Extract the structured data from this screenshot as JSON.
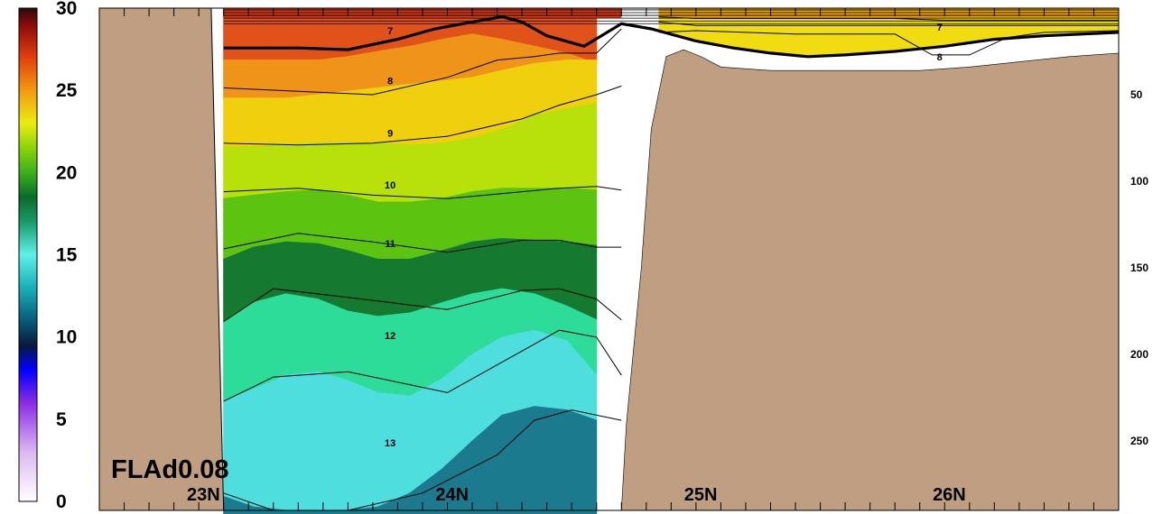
{
  "chart_data": {
    "type": "heatmap",
    "model_label": "FLAd0.08",
    "colorbar": {
      "range": [
        0,
        30
      ],
      "tick_labels": [
        "0",
        "5",
        "10",
        "15",
        "20",
        "25",
        "30"
      ],
      "tick_values": [
        0,
        5,
        10,
        15,
        20,
        25,
        30
      ],
      "colors": [
        [
          0,
          "#ffffff"
        ],
        [
          3,
          "#dcb8f0"
        ],
        [
          6,
          "#8a2be2"
        ],
        [
          8,
          "#0000ff"
        ],
        [
          9.5,
          "#081a3a"
        ],
        [
          11,
          "#0a5a7a"
        ],
        [
          13,
          "#1ab0b8"
        ],
        [
          15,
          "#5ff0e8"
        ],
        [
          17,
          "#1a9a6a"
        ],
        [
          18.5,
          "#0a6a2a"
        ],
        [
          20,
          "#3cb01c"
        ],
        [
          21.5,
          "#8ad40a"
        ],
        [
          23,
          "#ecec10"
        ],
        [
          25,
          "#f29a10"
        ],
        [
          27,
          "#e0400c"
        ],
        [
          29,
          "#8a0a0a"
        ],
        [
          30,
          "#2a0a0a"
        ]
      ]
    },
    "depth_axis": {
      "tick_labels": [
        "50",
        "100",
        "150",
        "200",
        "250"
      ],
      "tick_values": [
        50,
        100,
        150,
        200,
        250
      ],
      "range": [
        0,
        290
      ]
    },
    "latitude_axis": {
      "tick_labels": [
        "23N",
        "24N",
        "25N",
        "26N"
      ],
      "tick_values": [
        23,
        24,
        25,
        26
      ],
      "range": [
        22.5,
        26.6
      ]
    },
    "contour_labels": [
      {
        "text": "7",
        "lat": 23.67,
        "depth": 13
      },
      {
        "text": "8",
        "lat": 23.67,
        "depth": 42
      },
      {
        "text": "9",
        "lat": 23.67,
        "depth": 72
      },
      {
        "text": "10",
        "lat": 23.67,
        "depth": 102
      },
      {
        "text": "11",
        "lat": 23.67,
        "depth": 136
      },
      {
        "text": "12",
        "lat": 23.67,
        "depth": 189
      },
      {
        "text": "13",
        "lat": 23.67,
        "depth": 251
      },
      {
        "text": "7",
        "lat": 25.88,
        "depth": 11
      },
      {
        "text": "8",
        "lat": 25.88,
        "depth": 28
      }
    ],
    "bands": [
      {
        "value": 26.5,
        "color": "#e0521a",
        "top": [
          2,
          2,
          2,
          2,
          2,
          2,
          2,
          2,
          2,
          2,
          2,
          2,
          2
        ],
        "bottom": [
          30,
          30,
          30,
          30,
          28,
          25,
          22,
          18,
          15,
          18,
          22,
          26,
          32
        ]
      },
      {
        "value": 24.5,
        "color": "#ef9418",
        "top": [
          30,
          30,
          30,
          30,
          28,
          25,
          22,
          18,
          15,
          18,
          22,
          26,
          32
        ],
        "bottom": [
          52,
          52,
          52,
          50,
          48,
          46,
          44,
          42,
          40,
          36,
          32,
          30,
          30
        ]
      },
      {
        "value": 22.8,
        "color": "#f0d00e",
        "top": [
          52,
          52,
          52,
          50,
          48,
          46,
          44,
          42,
          40,
          36,
          32,
          30,
          30
        ],
        "bottom": [
          80,
          80,
          79,
          78,
          78,
          78,
          79,
          78,
          75,
          70,
          62,
          58,
          55
        ]
      },
      {
        "value": 21.3,
        "color": "#b8e00a",
        "top": [
          80,
          80,
          79,
          78,
          78,
          78,
          79,
          78,
          75,
          70,
          62,
          58,
          55
        ],
        "bottom": [
          110,
          108,
          106,
          105,
          108,
          112,
          112,
          110,
          106,
          104,
          104,
          104,
          105
        ]
      },
      {
        "value": 19.7,
        "color": "#5cc410",
        "top": [
          110,
          108,
          106,
          105,
          108,
          112,
          112,
          110,
          106,
          104,
          104,
          104,
          105
        ],
        "bottom": [
          145,
          138,
          135,
          136,
          140,
          145,
          145,
          140,
          135,
          133,
          134,
          135,
          137
        ]
      },
      {
        "value": 18,
        "color": "#157a30",
        "top": [
          145,
          138,
          135,
          136,
          140,
          145,
          145,
          140,
          135,
          133,
          134,
          135,
          137
        ],
        "bottom": [
          181,
          170,
          165,
          168,
          175,
          178,
          176,
          170,
          165,
          162,
          165,
          172,
          180
        ]
      },
      {
        "value": 16,
        "color": "#2edc9a",
        "top": [
          181,
          170,
          165,
          168,
          175,
          178,
          176,
          170,
          165,
          162,
          165,
          172,
          180
        ],
        "bottom": [
          227,
          220,
          212,
          210,
          215,
          222,
          224,
          214,
          200,
          190,
          186,
          192,
          212
        ]
      },
      {
        "value": 14,
        "color": "#4fdede",
        "top": [
          227,
          220,
          212,
          210,
          215,
          222,
          224,
          214,
          200,
          190,
          186,
          192,
          212
        ],
        "bottom": [
          282,
          288,
          290,
          290,
          290,
          288,
          280,
          266,
          250,
          235,
          230,
          232,
          238
        ]
      },
      {
        "value": 11.5,
        "color": "#1b7a8e",
        "top": [
          282,
          288,
          290,
          290,
          290,
          288,
          280,
          266,
          250,
          235,
          230,
          232,
          238
        ],
        "bottom": [
          292,
          292,
          292,
          292,
          292,
          292,
          292,
          292,
          292,
          292,
          292,
          292,
          292
        ]
      }
    ],
    "band_lats": [
      23.0,
      23.12,
      23.25,
      23.38,
      23.5,
      23.62,
      23.75,
      23.88,
      24.0,
      24.12,
      24.25,
      24.38,
      24.5
    ],
    "bold_isotherm": {
      "lat": [
        23.0,
        23.15,
        23.3,
        23.5,
        23.7,
        23.85,
        24.0,
        24.12,
        24.2,
        24.3,
        24.45,
        24.6,
        24.72,
        24.9,
        25.05,
        25.2,
        25.35,
        25.5,
        25.7,
        25.9,
        26.1,
        26.3,
        26.6
      ],
      "depth": [
        23,
        23,
        23,
        24,
        18,
        12,
        8,
        5,
        8,
        16,
        22,
        9,
        12,
        19,
        23,
        26,
        28,
        27,
        25,
        22,
        18,
        16,
        14
      ]
    },
    "contour_lines": [
      {
        "lat": [
          23.0,
          23.3,
          23.6,
          23.9,
          24.1,
          24.25,
          24.35,
          24.5,
          24.6
        ],
        "depth": [
          46,
          48,
          50,
          40,
          30,
          28,
          26,
          26,
          12
        ]
      },
      {
        "lat": [
          23.0,
          23.3,
          23.6,
          23.9,
          24.2,
          24.35,
          24.5,
          24.6
        ],
        "depth": [
          78,
          79,
          78,
          74,
          64,
          56,
          50,
          45
        ]
      },
      {
        "lat": [
          23.0,
          23.3,
          23.6,
          23.9,
          24.2,
          24.35,
          24.5,
          24.6
        ],
        "depth": [
          106,
          104,
          108,
          110,
          106,
          104,
          103,
          105
        ]
      },
      {
        "lat": [
          23.0,
          23.3,
          23.6,
          23.9,
          24.2,
          24.35,
          24.5,
          24.6
        ],
        "depth": [
          139,
          130,
          135,
          141,
          134,
          134,
          138,
          138
        ]
      },
      {
        "lat": [
          23.0,
          23.2,
          23.5,
          23.9,
          24.2,
          24.35,
          24.5,
          24.6
        ],
        "depth": [
          181,
          162,
          167,
          174,
          163,
          162,
          168,
          180
        ]
      },
      {
        "lat": [
          23.0,
          23.2,
          23.5,
          23.9,
          24.2,
          24.35,
          24.5,
          24.6
        ],
        "depth": [
          227,
          213,
          210,
          222,
          198,
          186,
          190,
          212
        ]
      },
      {
        "lat": [
          23.0,
          23.2,
          23.5,
          23.8,
          24.1,
          24.25,
          24.4,
          24.6
        ],
        "depth": [
          280,
          290,
          290,
          280,
          258,
          238,
          232,
          238
        ]
      },
      {
        "lat": [
          24.75,
          24.9,
          25.1,
          25.3,
          25.5,
          25.7,
          25.9,
          26.1,
          26.3,
          26.6
        ],
        "depth": [
          5,
          6,
          6,
          6,
          6,
          6,
          7,
          7,
          7,
          7
        ]
      },
      {
        "lat": [
          24.75,
          24.9,
          25.1,
          25.3,
          25.5,
          25.7,
          25.9,
          26.1,
          26.3,
          26.6
        ],
        "depth": [
          8,
          10,
          10,
          10,
          10,
          10,
          10,
          10,
          10,
          10
        ]
      },
      {
        "lat": [
          24.75,
          24.9,
          25.1,
          25.3,
          25.5,
          25.7,
          25.85,
          26.0,
          26.15,
          26.3,
          26.6
        ],
        "depth": [
          14,
          13,
          14,
          15,
          15,
          15,
          27,
          27,
          17,
          14,
          13
        ]
      }
    ]
  }
}
